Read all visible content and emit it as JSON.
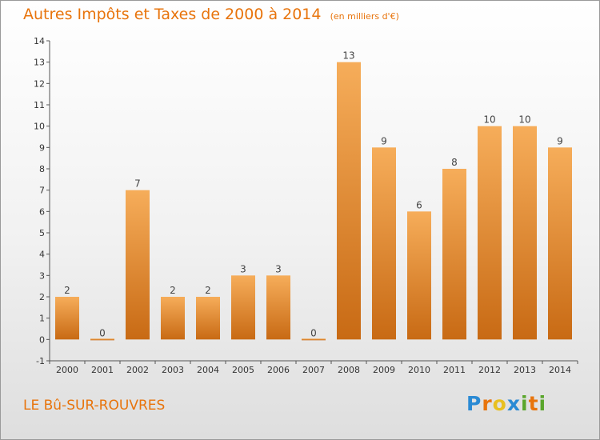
{
  "title": "Autres Impôts et Taxes de 2000 à 2014",
  "subtitle": "(en milliers d'€)",
  "location": "LE Bû-SUR-ROUVRES",
  "brand": {
    "letters": [
      "P",
      "r",
      "o",
      "x",
      "i",
      "t",
      "i"
    ],
    "colors": [
      "#2a8ad4",
      "#e8740c",
      "#e8c020",
      "#2a8ad4",
      "#5aa62c",
      "#e8740c",
      "#5aa62c"
    ]
  },
  "colors": {
    "accent": "#e8740c",
    "bar_light": "#f6ad5a",
    "bar_dark": "#c86a14",
    "axis": "#555555",
    "tick_label": "#333333"
  },
  "chart_data": {
    "type": "bar",
    "categories": [
      "2000",
      "2001",
      "2002",
      "2003",
      "2004",
      "2005",
      "2006",
      "2007",
      "2008",
      "2009",
      "2010",
      "2011",
      "2012",
      "2013",
      "2014"
    ],
    "values": [
      2,
      0,
      7,
      2,
      2,
      3,
      3,
      0,
      13,
      9,
      6,
      8,
      10,
      10,
      9
    ],
    "data_labels": [
      "2",
      "0",
      "7",
      "2",
      "2",
      "3",
      "3",
      "0",
      "13",
      "9",
      "6",
      "8",
      "10",
      "10",
      "9"
    ],
    "ylim": [
      -1,
      14
    ],
    "y_ticks": [
      -1,
      0,
      1,
      2,
      3,
      4,
      5,
      6,
      7,
      8,
      9,
      10,
      11,
      12,
      13,
      14
    ],
    "y_tick_labels": [
      "-1",
      "0",
      "1",
      "2",
      "3",
      "4",
      "5",
      "6",
      "7",
      "8",
      "9",
      "10",
      "11",
      "12",
      "13",
      "14"
    ],
    "xlabel": "",
    "ylabel": "",
    "grid": false,
    "legend": "none"
  }
}
